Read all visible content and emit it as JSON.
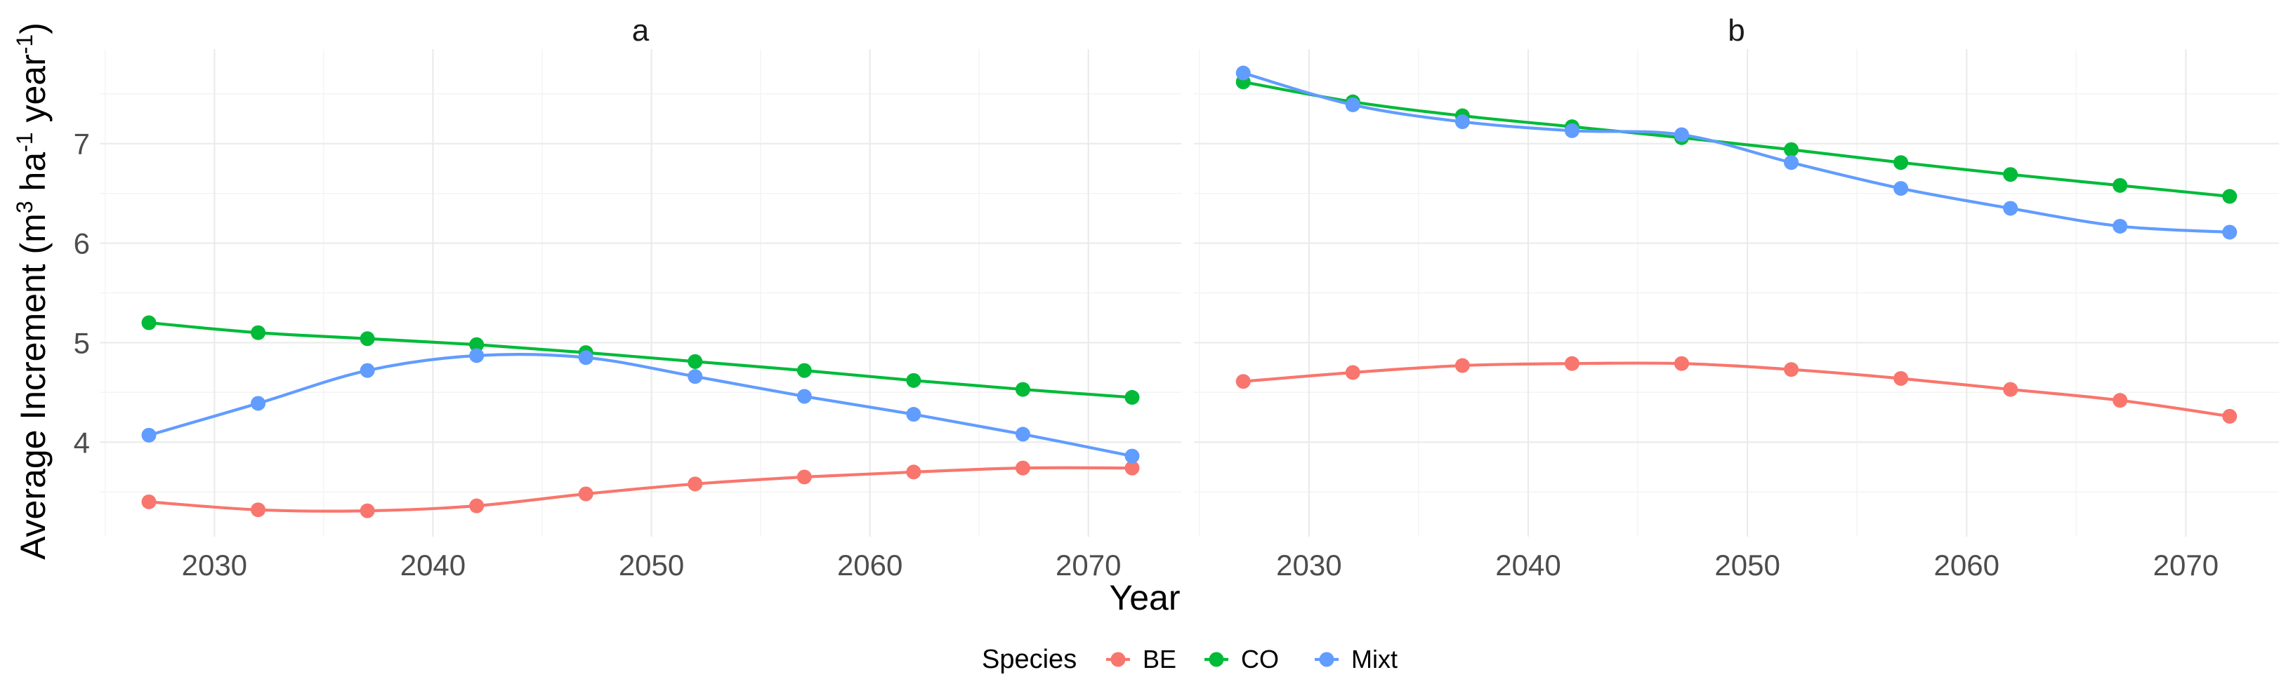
{
  "chart_data": {
    "type": "line",
    "xlabel": "Year",
    "ylabel": "Average Increment (m³ ha⁻¹ year⁻¹)",
    "ylabel_parts": {
      "main": "Average Increment (m",
      "sup1": "3",
      "mid1": " ha",
      "sup2": "-1",
      "mid2": " year",
      "sup3": "-1",
      "end": ")"
    },
    "x_ticks": [
      2030,
      2040,
      2050,
      2060,
      2070
    ],
    "y_ticks": [
      4,
      5,
      6,
      7
    ],
    "xlim": [
      2024.75,
      2074.25
    ],
    "ylim": [
      3.05,
      7.95
    ],
    "legend": {
      "title": "Species",
      "position": "bottom",
      "entries": [
        {
          "name": "BE",
          "color": "#F8766D"
        },
        {
          "name": "CO",
          "color": "#00BA38"
        },
        {
          "name": "Mixt",
          "color": "#619CFF"
        }
      ]
    },
    "panels": [
      {
        "label": "a",
        "series": [
          {
            "name": "BE",
            "color": "#F8766D",
            "x": [
              2027,
              2032,
              2037,
              2042,
              2047,
              2052,
              2057,
              2062,
              2067,
              2072
            ],
            "y": [
              3.4,
              3.32,
              3.31,
              3.36,
              3.48,
              3.58,
              3.65,
              3.7,
              3.74,
              3.74
            ]
          },
          {
            "name": "CO",
            "color": "#00BA38",
            "x": [
              2027,
              2032,
              2037,
              2042,
              2047,
              2052,
              2057,
              2062,
              2067,
              2072
            ],
            "y": [
              5.2,
              5.1,
              5.04,
              4.98,
              4.9,
              4.81,
              4.72,
              4.62,
              4.53,
              4.45
            ]
          },
          {
            "name": "Mixt",
            "color": "#619CFF",
            "x": [
              2027,
              2032,
              2037,
              2042,
              2047,
              2052,
              2057,
              2062,
              2067,
              2072
            ],
            "y": [
              4.07,
              4.39,
              4.72,
              4.87,
              4.85,
              4.66,
              4.46,
              4.28,
              4.08,
              3.86
            ]
          }
        ]
      },
      {
        "label": "b",
        "series": [
          {
            "name": "BE",
            "color": "#F8766D",
            "x": [
              2027,
              2032,
              2037,
              2042,
              2047,
              2052,
              2057,
              2062,
              2067,
              2072
            ],
            "y": [
              4.61,
              4.7,
              4.77,
              4.79,
              4.79,
              4.73,
              4.64,
              4.53,
              4.42,
              4.26
            ]
          },
          {
            "name": "CO",
            "color": "#00BA38",
            "x": [
              2027,
              2032,
              2037,
              2042,
              2047,
              2052,
              2057,
              2062,
              2067,
              2072
            ],
            "y": [
              7.62,
              7.42,
              7.28,
              7.17,
              7.06,
              6.94,
              6.81,
              6.69,
              6.58,
              6.47
            ]
          },
          {
            "name": "Mixt",
            "color": "#619CFF",
            "x": [
              2027,
              2032,
              2037,
              2042,
              2047,
              2052,
              2057,
              2062,
              2067,
              2072
            ],
            "y": [
              7.71,
              7.39,
              7.22,
              7.13,
              7.09,
              6.81,
              6.55,
              6.35,
              6.17,
              6.11
            ]
          }
        ]
      }
    ]
  }
}
